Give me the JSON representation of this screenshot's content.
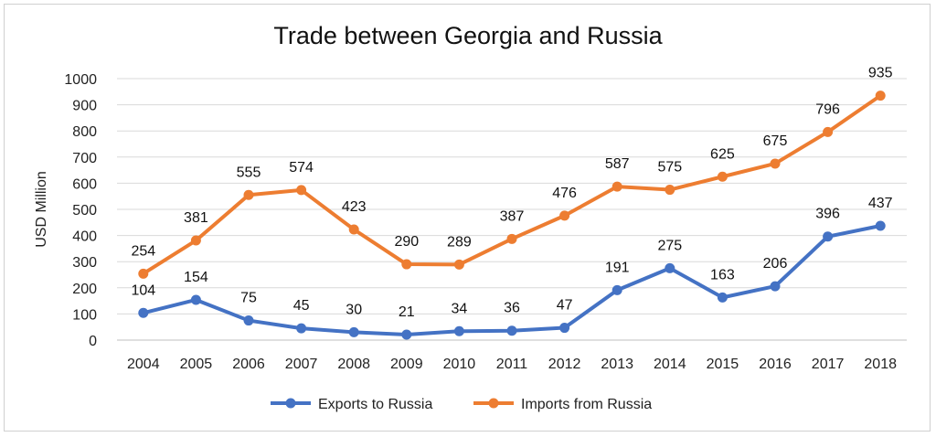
{
  "chart_data": {
    "type": "line",
    "title": "Trade between Georgia and Russia",
    "xlabel": "",
    "ylabel": "USD Million",
    "ylim": [
      0,
      1000
    ],
    "yticks": [
      0,
      100,
      200,
      300,
      400,
      500,
      600,
      700,
      800,
      900,
      1000
    ],
    "grid": true,
    "legend_position": "bottom",
    "categories": [
      "2004",
      "2005",
      "2006",
      "2007",
      "2008",
      "2009",
      "2010",
      "2011",
      "2012",
      "2013",
      "2014",
      "2015",
      "2016",
      "2017",
      "2018"
    ],
    "series": [
      {
        "name": "Exports to Russia",
        "color": "#4472C4",
        "values": [
          104,
          154,
          75,
          45,
          30,
          21,
          34,
          36,
          47,
          191,
          275,
          163,
          206,
          396,
          437
        ]
      },
      {
        "name": "Imports from Russia",
        "color": "#ED7D31",
        "values": [
          254,
          381,
          555,
          574,
          423,
          290,
          289,
          387,
          476,
          587,
          575,
          625,
          675,
          796,
          935
        ]
      }
    ]
  }
}
